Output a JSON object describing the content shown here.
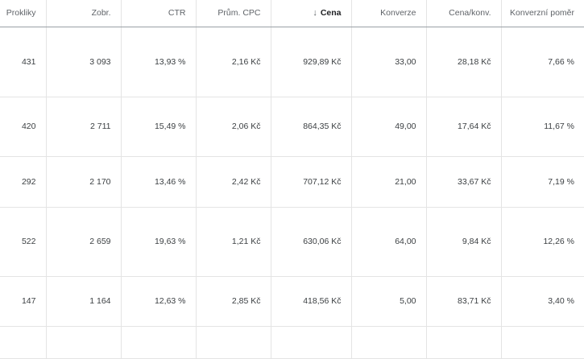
{
  "table": {
    "headers": [
      {
        "label": "Prokliky"
      },
      {
        "label": "Zobr."
      },
      {
        "label": "CTR"
      },
      {
        "label": "Prům. CPC"
      },
      {
        "label": "Cena",
        "sort_icon": "↓",
        "sorted": true
      },
      {
        "label": "Konverze"
      },
      {
        "label": "Cena/konv."
      },
      {
        "label": "Konverzní poměr"
      }
    ],
    "rows": [
      [
        "431",
        "3 093",
        "13,93 %",
        "2,16 Kč",
        "929,89 Kč",
        "33,00",
        "28,18 Kč",
        "7,66 %"
      ],
      [
        "420",
        "2 711",
        "15,49 %",
        "2,06 Kč",
        "864,35 Kč",
        "49,00",
        "17,64 Kč",
        "11,67 %"
      ],
      [
        "292",
        "2 170",
        "13,46 %",
        "2,42 Kč",
        "707,12 Kč",
        "21,00",
        "33,67 Kč",
        "7,19 %"
      ],
      [
        "522",
        "2 659",
        "19,63 %",
        "1,21 Kč",
        "630,06 Kč",
        "64,00",
        "9,84 Kč",
        "12,26 %"
      ],
      [
        "147",
        "1 164",
        "12,63 %",
        "2,85 Kč",
        "418,56 Kč",
        "5,00",
        "83,71 Kč",
        "3,40 %"
      ],
      [
        "",
        "",
        "",
        "",
        "",
        "",
        "",
        ""
      ]
    ]
  }
}
